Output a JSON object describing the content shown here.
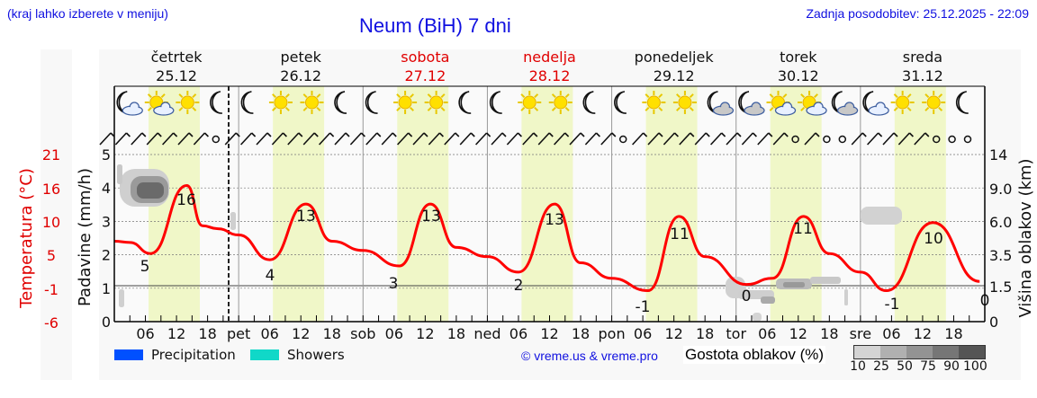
{
  "header": {
    "hint": "(kraj lahko izberete v meniju)",
    "title": "Neum (BiH) 7 dni",
    "updated": "Zadnja posodobitev: 25.12.2025 - 22:09"
  },
  "days": [
    {
      "name": "četrtek",
      "date": "25.12",
      "weekend": false,
      "icons": [
        "moon-cloud",
        "sun-cloud",
        "sun",
        "moon"
      ]
    },
    {
      "name": "petek",
      "date": "26.12",
      "weekend": false,
      "icons": [
        "moon",
        "sun",
        "sun",
        "moon"
      ]
    },
    {
      "name": "sobota",
      "date": "27.12",
      "weekend": true,
      "icons": [
        "moon",
        "sun",
        "sun",
        "moon"
      ]
    },
    {
      "name": "nedelja",
      "date": "28.12",
      "weekend": true,
      "icons": [
        "moon",
        "sun",
        "sun",
        "moon"
      ]
    },
    {
      "name": "ponedeljek",
      "date": "29.12",
      "weekend": false,
      "icons": [
        "moon",
        "sun",
        "sun",
        "moon-cloud"
      ]
    },
    {
      "name": "torek",
      "date": "30.12",
      "weekend": false,
      "icons": [
        "moon-cloud",
        "sun-cloud",
        "sun-cloud",
        "moon-cloud"
      ]
    },
    {
      "name": "sreda",
      "date": "31.12",
      "weekend": false,
      "icons": [
        "moon-cloud",
        "sun",
        "sun",
        "moon"
      ]
    }
  ],
  "x_ticks": [
    "06",
    "12",
    "18",
    "pet",
    "06",
    "12",
    "18",
    "sob",
    "06",
    "12",
    "18",
    "ned",
    "06",
    "12",
    "18",
    "pon",
    "06",
    "12",
    "18",
    "tor",
    "06",
    "12",
    "18",
    "sre",
    "06",
    "12",
    "18"
  ],
  "axes": {
    "temp_label": "Temperatura (°C)",
    "temp_ticks": [
      "21",
      "16",
      "10",
      "5",
      "-1",
      "-6"
    ],
    "precip_label": "Padavine (mm/h)",
    "precip_ticks": [
      "5",
      "4",
      "3",
      "2",
      "1",
      "0"
    ],
    "cloud_label": "Višina oblakov (km)",
    "cloud_ticks": [
      "14",
      "9.0",
      "6.0",
      "3.5",
      "1.5",
      "0"
    ]
  },
  "legend": {
    "precipitation": "Precipitation",
    "showers": "Showers",
    "precipitation_color": "#0050ff",
    "showers_color": "#10d8c8",
    "credit": "© vreme.us & vreme.pro",
    "cloud_density_label": "Gostota oblakov (%)",
    "cloud_density_ticks": [
      "10",
      "25",
      "50",
      "75",
      "90",
      "100"
    ]
  },
  "chart_data": {
    "type": "line",
    "title": "Neum (BiH) 7 dni",
    "xlabel": "",
    "ylabel": "Temperatura (°C)",
    "ylim": [
      -6,
      21
    ],
    "temperature_color": "#ff0000",
    "series": [
      {
        "name": "Temperatura",
        "points": [
          {
            "t": "25.12 00",
            "v": 7
          },
          {
            "t": "25.12 03",
            "v": 6.8
          },
          {
            "t": "25.12 07",
            "v": 5
          },
          {
            "t": "25.12 14",
            "v": 16
          },
          {
            "t": "25.12 17",
            "v": 9.5
          },
          {
            "t": "25.12 20",
            "v": 9
          },
          {
            "t": "26.12 00",
            "v": 8
          },
          {
            "t": "26.12 06",
            "v": 4
          },
          {
            "t": "26.12 13",
            "v": 13
          },
          {
            "t": "26.12 18",
            "v": 7
          },
          {
            "t": "27.12 00",
            "v": 5.5
          },
          {
            "t": "27.12 07",
            "v": 3
          },
          {
            "t": "27.12 13",
            "v": 13
          },
          {
            "t": "27.12 18",
            "v": 6
          },
          {
            "t": "28.12 00",
            "v": 4.5
          },
          {
            "t": "28.12 06",
            "v": 2
          },
          {
            "t": "28.12 13",
            "v": 13
          },
          {
            "t": "28.12 18",
            "v": 3.5
          },
          {
            "t": "29.12 00",
            "v": 1
          },
          {
            "t": "29.12 07",
            "v": -1
          },
          {
            "t": "29.12 13",
            "v": 11
          },
          {
            "t": "29.12 18",
            "v": 4.5
          },
          {
            "t": "30.12 02",
            "v": 0
          },
          {
            "t": "30.12 07",
            "v": 1
          },
          {
            "t": "30.12 13",
            "v": 11
          },
          {
            "t": "30.12 18",
            "v": 5
          },
          {
            "t": "31.12 00",
            "v": 2
          },
          {
            "t": "31.12 05",
            "v": -1
          },
          {
            "t": "31.12 14",
            "v": 10
          },
          {
            "t": "31.12 23",
            "v": 0.5
          }
        ]
      }
    ],
    "annotations": [
      {
        "label": "5",
        "day": "25.12"
      },
      {
        "label": "16",
        "day": "25.12"
      },
      {
        "label": "4",
        "day": "26.12"
      },
      {
        "label": "13",
        "day": "26.12"
      },
      {
        "label": "3",
        "day": "27.12"
      },
      {
        "label": "13",
        "day": "27.12"
      },
      {
        "label": "2",
        "day": "28.12"
      },
      {
        "label": "13",
        "day": "28.12"
      },
      {
        "label": "-1",
        "day": "29.12"
      },
      {
        "label": "11",
        "day": "29.12"
      },
      {
        "label": "0",
        "day": "30.12"
      },
      {
        "label": "11",
        "day": "30.12"
      },
      {
        "label": "-1",
        "day": "31.12"
      },
      {
        "label": "10",
        "day": "31.12"
      },
      {
        "label": "0",
        "day": "31.12 end"
      }
    ],
    "precipitation_mm_h": "0 (none shown)",
    "cloud_cover": "grey density patches at ~4-4.5 km on 25.12 morning, low clouds on 30.12, ~6 km on 31.12 early",
    "grid": true
  }
}
